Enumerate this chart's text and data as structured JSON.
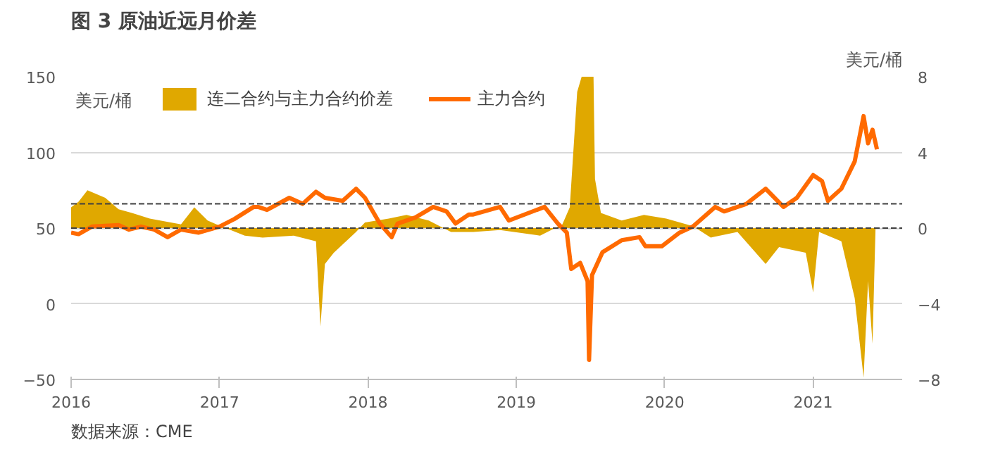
{
  "chart_data": {
    "type": "line",
    "title": "图 3  原油近远月价差",
    "ylabel": "美元/桶",
    "y2label": "美元/桶",
    "annotations": [
      "数据来源：CME"
    ],
    "xlim": [
      2016,
      2021.6
    ],
    "xticks": [
      2016,
      2017,
      2018,
      2019,
      2020,
      2021
    ],
    "ylim": [
      -50,
      150
    ],
    "yticks": [
      -50,
      0,
      50,
      100,
      150
    ],
    "y2lim": [
      -8,
      8
    ],
    "y2ticks": [
      -8,
      -4,
      0,
      4,
      8
    ],
    "grid": "y",
    "legend": "top",
    "ref_lines": [
      {
        "axis": "y",
        "value": 66,
        "line_style": "dashed",
        "color": "#404040"
      },
      {
        "axis": "y2",
        "value": 0,
        "line_style": "dashed",
        "color": "#404040"
      }
    ],
    "series": [
      {
        "name": "连二合约与主力合约价差",
        "type": "area",
        "axis": "y2",
        "color": "#e0a800",
        "x": [
          2016.0,
          2016.05,
          2016.11,
          2016.23,
          2016.32,
          2016.41,
          2016.53,
          2016.74,
          2016.83,
          2016.92,
          2016.98,
          2017.17,
          2017.29,
          2017.5,
          2017.65,
          2017.68,
          2017.71,
          2017.77,
          2017.92,
          2017.98,
          2018.14,
          2018.26,
          2018.41,
          2018.56,
          2018.71,
          2018.89,
          2019.16,
          2019.31,
          2019.36,
          2019.41,
          2019.44,
          2019.52,
          2019.53,
          2019.57,
          2019.71,
          2019.86,
          2020.01,
          2020.19,
          2020.31,
          2020.49,
          2020.68,
          2020.77,
          2020.95,
          2021.0,
          2021.04,
          2021.19,
          2021.28,
          2021.34,
          2021.37,
          2021.4,
          2021.42
        ],
        "values": [
          1.1,
          1.4,
          2.0,
          1.6,
          1.0,
          0.8,
          0.5,
          0.2,
          1.1,
          0.4,
          0.2,
          -0.4,
          -0.5,
          -0.4,
          -0.7,
          -5.2,
          -1.9,
          -1.3,
          -0.2,
          0.3,
          0.5,
          0.7,
          0.4,
          -0.2,
          -0.2,
          -0.1,
          -0.4,
          0.2,
          1.1,
          7.2,
          8,
          8,
          2.6,
          0.8,
          0.4,
          0.7,
          0.5,
          0.1,
          -0.5,
          -0.2,
          -1.9,
          -1.0,
          -1.3,
          -3.4,
          -0.2,
          -0.7,
          -3.7,
          -7.9,
          -2.8,
          -6.1,
          -0.1
        ]
      },
      {
        "name": "主力合约",
        "color": "#ff6a00",
        "x": [
          2016.0,
          2016.05,
          2016.14,
          2016.32,
          2016.39,
          2016.47,
          2016.56,
          2016.65,
          2016.74,
          2016.86,
          2017.0,
          2017.1,
          2017.23,
          2017.26,
          2017.32,
          2017.47,
          2017.56,
          2017.65,
          2017.71,
          2017.83,
          2017.92,
          2017.98,
          2018.08,
          2018.16,
          2018.2,
          2018.32,
          2018.44,
          2018.53,
          2018.59,
          2018.68,
          2018.71,
          2018.89,
          2018.95,
          2019.19,
          2019.28,
          2019.34,
          2019.37,
          2019.43,
          2019.48,
          2019.49,
          2019.51,
          2019.58,
          2019.71,
          2019.83,
          2019.87,
          2019.98,
          2020.1,
          2020.19,
          2020.34,
          2020.4,
          2020.55,
          2020.68,
          2020.8,
          2020.89,
          2021.0,
          2021.06,
          2021.1,
          2021.19,
          2021.28,
          2021.34,
          2021.37,
          2021.4,
          2021.43
        ],
        "values": [
          47,
          46,
          51,
          52,
          49,
          51,
          49,
          44,
          49,
          47,
          51,
          56,
          64,
          64,
          62,
          70,
          66,
          74,
          70,
          68,
          76,
          70,
          53,
          44,
          53,
          57,
          64,
          61,
          53,
          59,
          59,
          64,
          55,
          64,
          53,
          47,
          23,
          27,
          15,
          -37,
          19,
          34,
          42,
          44,
          38,
          38,
          47,
          51,
          64,
          61,
          66,
          76,
          64,
          70,
          85,
          81,
          68,
          76,
          94,
          124,
          106,
          115,
          102
        ]
      }
    ]
  }
}
